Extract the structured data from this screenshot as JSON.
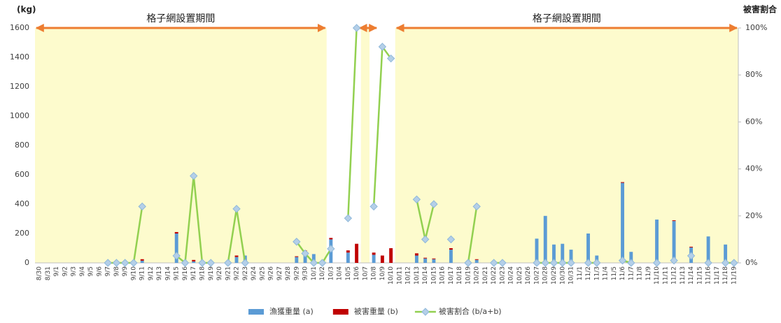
{
  "chart_data": {
    "type": "bar_line",
    "y_axis_label": "(kg)",
    "y2_axis_label": "被害割合",
    "categories": [
      "8/30",
      "8/31",
      "9/1",
      "9/2",
      "9/3",
      "9/4",
      "9/5",
      "9/6",
      "9/7",
      "9/8",
      "9/9",
      "9/10",
      "9/11",
      "9/12",
      "9/13",
      "9/14",
      "9/15",
      "9/16",
      "9/17",
      "9/18",
      "9/19",
      "9/20",
      "9/21",
      "9/22",
      "9/23",
      "9/24",
      "9/25",
      "9/26",
      "9/27",
      "9/28",
      "9/29",
      "9/30",
      "10/1",
      "10/2",
      "10/3",
      "10/4",
      "10/5",
      "10/6",
      "10/7",
      "10/8",
      "10/9",
      "10/10",
      "10/11",
      "10/12",
      "10/13",
      "10/14",
      "10/15",
      "10/16",
      "10/17",
      "10/18",
      "10/19",
      "10/20",
      "10/21",
      "10/22",
      "10/23",
      "10/24",
      "10/25",
      "10/26",
      "10/27",
      "10/28",
      "10/29",
      "10/30",
      "10/31",
      "11/1",
      "11/2",
      "11/3",
      "11/4",
      "11/5",
      "11/6",
      "11/7",
      "11/8",
      "11/9",
      "11/10",
      "11/11",
      "11/12",
      "11/13",
      "11/14",
      "11/15",
      "11/16",
      "11/17",
      "11/18",
      "11/19"
    ],
    "series": [
      {
        "name": "漁獲重量 (a)",
        "kind": "bar",
        "color": "#5b9bd5",
        "values": [
          null,
          null,
          null,
          null,
          null,
          null,
          null,
          null,
          null,
          null,
          null,
          null,
          15,
          null,
          null,
          null,
          200,
          null,
          10,
          null,
          null,
          null,
          null,
          40,
          50,
          null,
          null,
          null,
          null,
          null,
          40,
          80,
          60,
          null,
          160,
          null,
          70,
          null,
          null,
          55,
          null,
          null,
          null,
          null,
          50,
          30,
          25,
          null,
          90,
          null,
          null,
          20,
          null,
          null,
          null,
          null,
          null,
          null,
          165,
          320,
          125,
          130,
          90,
          null,
          200,
          50,
          null,
          null,
          545,
          75,
          null,
          null,
          295,
          null,
          285,
          null,
          105,
          null,
          180,
          null,
          125,
          null
        ]
      },
      {
        "name": "被害重量 (b)",
        "kind": "bar",
        "color": "#c00000",
        "values": [
          null,
          null,
          null,
          null,
          null,
          null,
          null,
          null,
          null,
          null,
          null,
          null,
          10,
          null,
          null,
          null,
          10,
          null,
          10,
          null,
          null,
          null,
          null,
          10,
          null,
          null,
          null,
          null,
          null,
          null,
          5,
          5,
          null,
          null,
          10,
          null,
          15,
          130,
          null,
          15,
          50,
          100,
          null,
          null,
          15,
          5,
          5,
          null,
          10,
          null,
          null,
          5,
          null,
          null,
          null,
          null,
          null,
          null,
          null,
          null,
          null,
          null,
          null,
          null,
          null,
          null,
          null,
          null,
          5,
          null,
          null,
          null,
          null,
          null,
          5,
          null,
          5,
          null,
          null,
          null,
          null,
          null
        ]
      },
      {
        "name": "被害割合 (b/a+b)",
        "kind": "line",
        "axis": "y2",
        "color": "#92d050",
        "marker_color": "#b4cfe8",
        "values": [
          null,
          null,
          null,
          null,
          null,
          null,
          null,
          null,
          0,
          0,
          0,
          0,
          24,
          null,
          null,
          null,
          3,
          0,
          37,
          0,
          0,
          null,
          0,
          23,
          0,
          null,
          null,
          null,
          null,
          null,
          9,
          4,
          0,
          0,
          6,
          null,
          19,
          100,
          null,
          24,
          92,
          87,
          null,
          null,
          27,
          10,
          25,
          null,
          10,
          null,
          0,
          24,
          null,
          0,
          0,
          null,
          null,
          null,
          0,
          0,
          0,
          0,
          0,
          null,
          0,
          0,
          null,
          null,
          1,
          0,
          null,
          null,
          0,
          null,
          1,
          null,
          3,
          null,
          0,
          null,
          0,
          0
        ]
      }
    ],
    "periods": [
      {
        "label": "格子網設置期間",
        "start": "8/30",
        "end": "10/2"
      },
      {
        "start": "10/7",
        "end": "10/7"
      },
      {
        "label": "格子網設置期間",
        "start": "10/11",
        "end": "11/19"
      }
    ],
    "period_color": "#fdfbcd",
    "arrow_color": "#ed7d31",
    "ylim": [
      0,
      1600
    ],
    "yticks": [
      0,
      200,
      400,
      600,
      800,
      1000,
      1200,
      1400,
      1600
    ],
    "y2lim": [
      0,
      100
    ],
    "y2ticks": [
      {
        "value": 0,
        "label": "0%"
      },
      {
        "value": 20,
        "label": "20%"
      },
      {
        "value": 40,
        "label": "40%"
      },
      {
        "value": 60,
        "label": "60%"
      },
      {
        "value": 80,
        "label": "80%"
      },
      {
        "value": 100,
        "label": "100%"
      }
    ],
    "stacked": true,
    "legend": "bottom"
  }
}
